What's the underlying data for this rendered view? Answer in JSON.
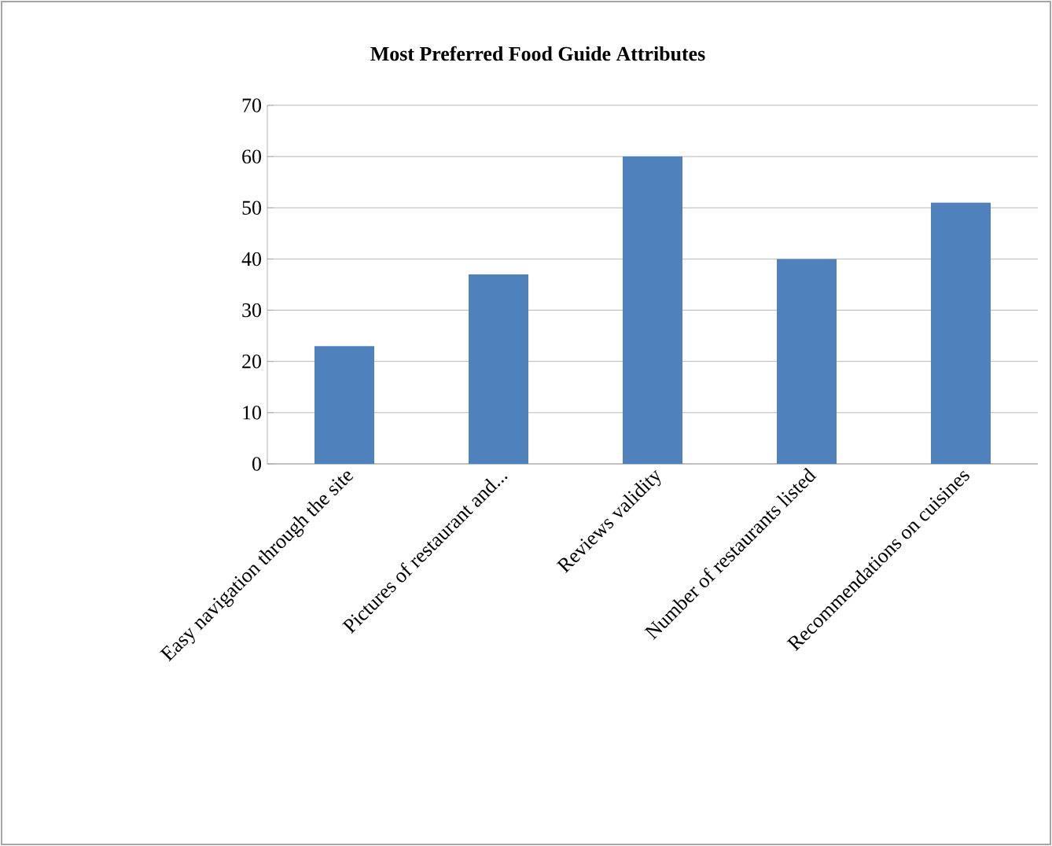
{
  "chart_data": {
    "type": "bar",
    "title": "Most Preferred  Food Guide Attributes",
    "categories": [
      "Easy navigation through the site",
      "Pictures of restaurant and...",
      "Reviews validity",
      "Number of restaurants listed",
      "Recommendations on cuisines"
    ],
    "values": [
      23,
      37,
      60,
      40,
      51
    ],
    "color": "#4f81bd",
    "ylim": [
      0,
      70
    ],
    "yticks": [
      0,
      10,
      20,
      30,
      40,
      50,
      60,
      70
    ],
    "grid": "y"
  }
}
